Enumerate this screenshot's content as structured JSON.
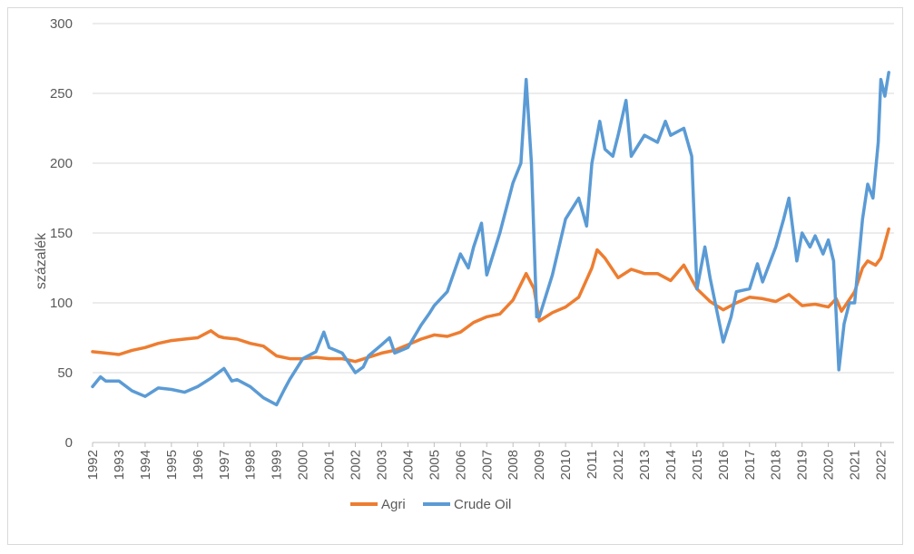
{
  "chart_data": {
    "type": "line",
    "title": "",
    "xlabel": "",
    "ylabel": "százalék",
    "ylim": [
      0,
      300
    ],
    "yticks": [
      0,
      50,
      100,
      150,
      200,
      250,
      300
    ],
    "xlim": [
      1992,
      2022.5
    ],
    "categories": [
      "1992",
      "1993",
      "1994",
      "1995",
      "1996",
      "1997",
      "1998",
      "1999",
      "2000",
      "2001",
      "2002",
      "2003",
      "2004",
      "2005",
      "2006",
      "2007",
      "2008",
      "2009",
      "2010",
      "2011",
      "2012",
      "2013",
      "2014",
      "2015",
      "2016",
      "2017",
      "2018",
      "2019",
      "2020",
      "2021",
      "2022"
    ],
    "grid": true,
    "legend_position": "bottom",
    "series": [
      {
        "name": "Agri",
        "color": "#ED7D31",
        "points": [
          [
            1992.0,
            65
          ],
          [
            1992.5,
            64
          ],
          [
            1993.0,
            63
          ],
          [
            1993.5,
            66
          ],
          [
            1994.0,
            68
          ],
          [
            1994.5,
            71
          ],
          [
            1995.0,
            73
          ],
          [
            1995.5,
            74
          ],
          [
            1996.0,
            75
          ],
          [
            1996.5,
            80
          ],
          [
            1996.8,
            76
          ],
          [
            1997.0,
            75
          ],
          [
            1997.5,
            74
          ],
          [
            1998.0,
            71
          ],
          [
            1998.5,
            69
          ],
          [
            1999.0,
            62
          ],
          [
            1999.5,
            60
          ],
          [
            2000.0,
            60
          ],
          [
            2000.5,
            61
          ],
          [
            2001.0,
            60
          ],
          [
            2001.5,
            60
          ],
          [
            2002.0,
            58
          ],
          [
            2002.5,
            61
          ],
          [
            2003.0,
            64
          ],
          [
            2003.5,
            66
          ],
          [
            2004.0,
            70
          ],
          [
            2004.5,
            74
          ],
          [
            2005.0,
            77
          ],
          [
            2005.5,
            76
          ],
          [
            2006.0,
            79
          ],
          [
            2006.5,
            86
          ],
          [
            2007.0,
            90
          ],
          [
            2007.5,
            92
          ],
          [
            2008.0,
            102
          ],
          [
            2008.5,
            121
          ],
          [
            2008.8,
            110
          ],
          [
            2009.0,
            87
          ],
          [
            2009.5,
            93
          ],
          [
            2010.0,
            97
          ],
          [
            2010.5,
            104
          ],
          [
            2011.0,
            125
          ],
          [
            2011.2,
            138
          ],
          [
            2011.5,
            132
          ],
          [
            2012.0,
            118
          ],
          [
            2012.5,
            124
          ],
          [
            2013.0,
            121
          ],
          [
            2013.5,
            121
          ],
          [
            2014.0,
            116
          ],
          [
            2014.5,
            127
          ],
          [
            2015.0,
            110
          ],
          [
            2015.5,
            101
          ],
          [
            2016.0,
            95
          ],
          [
            2016.5,
            100
          ],
          [
            2017.0,
            104
          ],
          [
            2017.5,
            103
          ],
          [
            2018.0,
            101
          ],
          [
            2018.5,
            106
          ],
          [
            2019.0,
            98
          ],
          [
            2019.5,
            99
          ],
          [
            2020.0,
            97
          ],
          [
            2020.3,
            103
          ],
          [
            2020.5,
            94
          ],
          [
            2021.0,
            108
          ],
          [
            2021.3,
            125
          ],
          [
            2021.5,
            130
          ],
          [
            2021.8,
            127
          ],
          [
            2022.0,
            132
          ],
          [
            2022.3,
            153
          ]
        ]
      },
      {
        "name": "Crude Oil",
        "color": "#5B9BD5",
        "points": [
          [
            1992.0,
            40
          ],
          [
            1992.3,
            47
          ],
          [
            1992.5,
            44
          ],
          [
            1993.0,
            44
          ],
          [
            1993.5,
            37
          ],
          [
            1994.0,
            33
          ],
          [
            1994.5,
            39
          ],
          [
            1995.0,
            38
          ],
          [
            1995.5,
            36
          ],
          [
            1996.0,
            40
          ],
          [
            1996.5,
            46
          ],
          [
            1997.0,
            53
          ],
          [
            1997.3,
            44
          ],
          [
            1997.5,
            45
          ],
          [
            1998.0,
            40
          ],
          [
            1998.5,
            32
          ],
          [
            1999.0,
            27
          ],
          [
            1999.3,
            38
          ],
          [
            1999.5,
            45
          ],
          [
            2000.0,
            60
          ],
          [
            2000.5,
            65
          ],
          [
            2000.8,
            79
          ],
          [
            2001.0,
            68
          ],
          [
            2001.5,
            64
          ],
          [
            2002.0,
            50
          ],
          [
            2002.3,
            54
          ],
          [
            2002.5,
            62
          ],
          [
            2003.0,
            70
          ],
          [
            2003.3,
            75
          ],
          [
            2003.5,
            64
          ],
          [
            2004.0,
            68
          ],
          [
            2004.5,
            84
          ],
          [
            2004.8,
            92
          ],
          [
            2005.0,
            98
          ],
          [
            2005.5,
            108
          ],
          [
            2006.0,
            135
          ],
          [
            2006.3,
            125
          ],
          [
            2006.5,
            140
          ],
          [
            2006.8,
            157
          ],
          [
            2007.0,
            120
          ],
          [
            2007.5,
            150
          ],
          [
            2008.0,
            186
          ],
          [
            2008.3,
            200
          ],
          [
            2008.5,
            260
          ],
          [
            2008.7,
            200
          ],
          [
            2008.9,
            90
          ],
          [
            2009.0,
            90
          ],
          [
            2009.5,
            120
          ],
          [
            2010.0,
            160
          ],
          [
            2010.5,
            175
          ],
          [
            2010.8,
            155
          ],
          [
            2011.0,
            200
          ],
          [
            2011.3,
            230
          ],
          [
            2011.5,
            210
          ],
          [
            2011.8,
            205
          ],
          [
            2012.0,
            220
          ],
          [
            2012.3,
            245
          ],
          [
            2012.5,
            205
          ],
          [
            2013.0,
            220
          ],
          [
            2013.5,
            215
          ],
          [
            2013.8,
            230
          ],
          [
            2014.0,
            220
          ],
          [
            2014.5,
            225
          ],
          [
            2014.8,
            205
          ],
          [
            2015.0,
            110
          ],
          [
            2015.3,
            140
          ],
          [
            2015.5,
            118
          ],
          [
            2016.0,
            72
          ],
          [
            2016.3,
            90
          ],
          [
            2016.5,
            108
          ],
          [
            2017.0,
            110
          ],
          [
            2017.3,
            128
          ],
          [
            2017.5,
            115
          ],
          [
            2018.0,
            140
          ],
          [
            2018.3,
            160
          ],
          [
            2018.5,
            175
          ],
          [
            2018.8,
            130
          ],
          [
            2019.0,
            150
          ],
          [
            2019.3,
            140
          ],
          [
            2019.5,
            148
          ],
          [
            2019.8,
            135
          ],
          [
            2020.0,
            145
          ],
          [
            2020.2,
            130
          ],
          [
            2020.4,
            52
          ],
          [
            2020.6,
            85
          ],
          [
            2020.8,
            100
          ],
          [
            2021.0,
            100
          ],
          [
            2021.3,
            160
          ],
          [
            2021.5,
            185
          ],
          [
            2021.7,
            175
          ],
          [
            2021.9,
            215
          ],
          [
            2022.0,
            260
          ],
          [
            2022.15,
            248
          ],
          [
            2022.3,
            265
          ]
        ]
      }
    ]
  }
}
